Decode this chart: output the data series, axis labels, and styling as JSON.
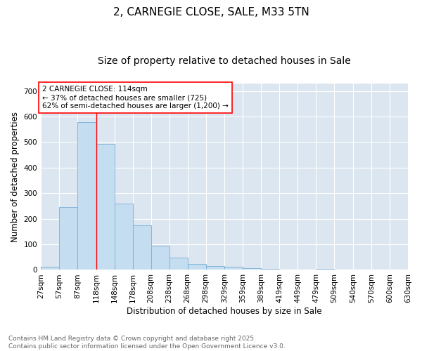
{
  "title1": "2, CARNEGIE CLOSE, SALE, M33 5TN",
  "title2": "Size of property relative to detached houses in Sale",
  "xlabel": "Distribution of detached houses by size in Sale",
  "ylabel": "Number of detached properties",
  "bins": [
    27,
    57,
    87,
    118,
    148,
    178,
    208,
    238,
    268,
    298,
    329,
    359,
    389,
    419,
    449,
    479,
    509,
    540,
    570,
    600,
    630
  ],
  "bin_labels": [
    "27sqm",
    "57sqm",
    "87sqm",
    "118sqm",
    "148sqm",
    "178sqm",
    "208sqm",
    "238sqm",
    "268sqm",
    "298sqm",
    "329sqm",
    "359sqm",
    "389sqm",
    "419sqm",
    "449sqm",
    "479sqm",
    "509sqm",
    "540sqm",
    "570sqm",
    "600sqm",
    "630sqm"
  ],
  "values": [
    12,
    247,
    578,
    494,
    260,
    173,
    95,
    49,
    24,
    15,
    12,
    7,
    4,
    1,
    0,
    5,
    0,
    0,
    0,
    0
  ],
  "bar_color": "#c5ddf0",
  "bar_edge_color": "#7aafd4",
  "vline_x": 118,
  "annotation_text": "2 CARNEGIE CLOSE: 114sqm\n← 37% of detached houses are smaller (725)\n62% of semi-detached houses are larger (1,200) →",
  "annotation_box_color": "white",
  "annotation_box_edge": "red",
  "ylim": [
    0,
    730
  ],
  "yticks": [
    0,
    100,
    200,
    300,
    400,
    500,
    600,
    700
  ],
  "background_color": "#dce6f0",
  "grid_color": "white",
  "footer_text": "Contains HM Land Registry data © Crown copyright and database right 2025.\nContains public sector information licensed under the Open Government Licence v3.0.",
  "title_fontsize": 11,
  "subtitle_fontsize": 10,
  "label_fontsize": 8.5,
  "tick_fontsize": 7.5,
  "footer_fontsize": 6.5
}
